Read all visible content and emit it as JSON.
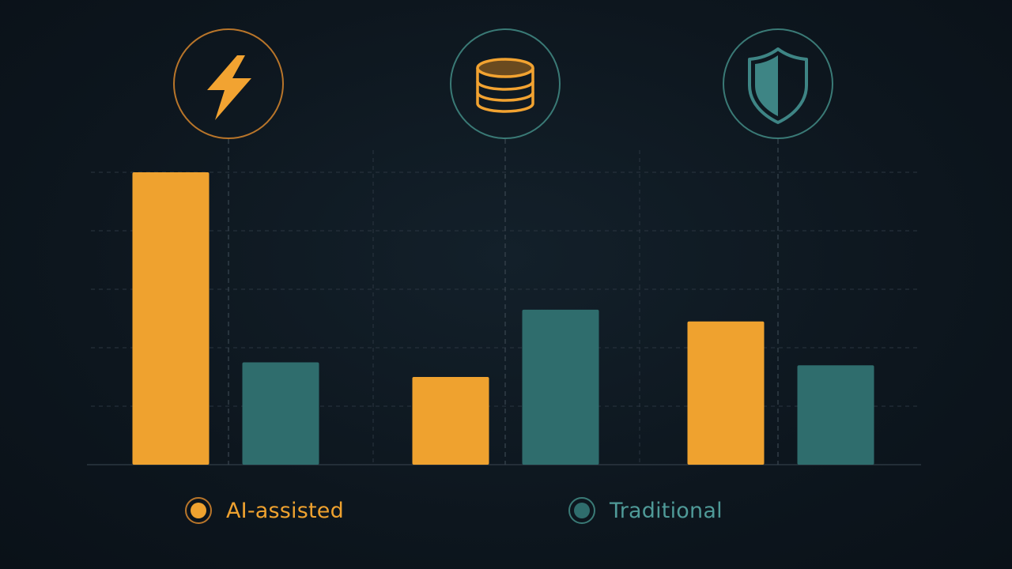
{
  "chart_data": {
    "type": "bar",
    "categories": [
      "",
      "",
      ""
    ],
    "category_icons": [
      "lightning-bolt-icon",
      "coin-stack-icon",
      "shield-icon"
    ],
    "series": [
      {
        "name": "AI-assisted",
        "color": "#efa22f",
        "values": [
          5.0,
          1.5,
          2.45
        ]
      },
      {
        "name": "Traditional",
        "color": "#2f6d6d",
        "values": [
          1.75,
          2.65,
          1.7
        ]
      }
    ],
    "title": "",
    "xlabel": "",
    "ylabel": "",
    "ylim": [
      0,
      5.0
    ],
    "grid": true,
    "legend_position": "bottom"
  },
  "legend": {
    "items": [
      {
        "label": "AI-assisted",
        "color": "#efa22f"
      },
      {
        "label": "Traditional",
        "color": "#2f6d6d"
      }
    ]
  },
  "colors": {
    "background": "#0e1720",
    "grid": "#2a3540",
    "accent_orange": "#efa22f",
    "accent_teal": "#3e8585"
  }
}
